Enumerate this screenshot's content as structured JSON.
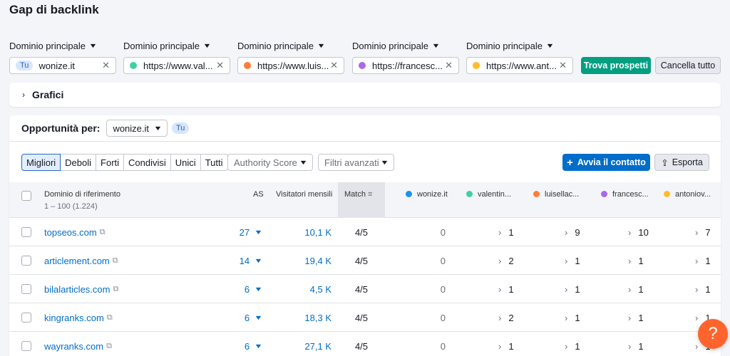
{
  "page": {
    "title": "Gap di backlink"
  },
  "domains": [
    {
      "label": "Dominio principale",
      "value": "wonize.it",
      "badge": "Tu",
      "color": ""
    },
    {
      "label": "Dominio principale",
      "value": "https://www.val...",
      "color": "#3fd1a1"
    },
    {
      "label": "Dominio principale",
      "value": "https://www.luis...",
      "color": "#ff7d37"
    },
    {
      "label": "Dominio principale",
      "value": "https://francesc...",
      "color": "#a869ec"
    },
    {
      "label": "Dominio principale",
      "value": "https://www.ant...",
      "color": "#ffbc2c"
    }
  ],
  "actions": {
    "find": "Trova prospetti",
    "clear": "Cancella tutto"
  },
  "charts_section": {
    "label": "Grafici"
  },
  "opportunities": {
    "label": "Opportunità per:",
    "selected": "wonize.it",
    "badge": "Tu"
  },
  "filters": {
    "tabs": [
      "Migliori",
      "Deboli",
      "Forti",
      "Condivisi",
      "Unici",
      "Tutti"
    ],
    "active_tab": "Migliori",
    "authority": "Authority Score",
    "advanced": "Filtri avanzati"
  },
  "buttons": {
    "contact": "Avvia il contatto",
    "export": "Esporta"
  },
  "table": {
    "headers": {
      "domain": "Dominio di riferimento",
      "range": "1 – 100 (1.224)",
      "as": "AS",
      "visitors": "Visitatori mensili",
      "match": "Match",
      "d1": "wonize.it",
      "d2": "valentin...",
      "d3": "luisellac...",
      "d4": "francesc...",
      "d5": "antoniov..."
    },
    "rows": [
      {
        "domain": "topseos.com",
        "as": "27",
        "visitors": "10,1 K",
        "match": "4/5",
        "d1": "0",
        "d2": "1",
        "d3": "9",
        "d4": "10",
        "d5": "7"
      },
      {
        "domain": "articlement.com",
        "as": "14",
        "visitors": "19,4 K",
        "match": "4/5",
        "d1": "0",
        "d2": "2",
        "d3": "1",
        "d4": "1",
        "d5": "1"
      },
      {
        "domain": "bilalarticles.com",
        "as": "6",
        "visitors": "4,5 K",
        "match": "4/5",
        "d1": "0",
        "d2": "1",
        "d3": "1",
        "d4": "1",
        "d5": "1"
      },
      {
        "domain": "kingranks.com",
        "as": "6",
        "visitors": "18,3 K",
        "match": "4/5",
        "d1": "0",
        "d2": "2",
        "d3": "1",
        "d4": "1",
        "d5": "1"
      },
      {
        "domain": "wayranks.com",
        "as": "6",
        "visitors": "27,1 K",
        "match": "4/5",
        "d1": "0",
        "d2": "1",
        "d3": "1",
        "d4": "1",
        "d5": "1"
      }
    ]
  },
  "colors": {
    "d1": "#1a91ee",
    "d2": "#3fd1a1",
    "d3": "#ff7d37",
    "d4": "#a869ec",
    "d5": "#ffbc2c"
  },
  "help": {
    "label": "?"
  }
}
